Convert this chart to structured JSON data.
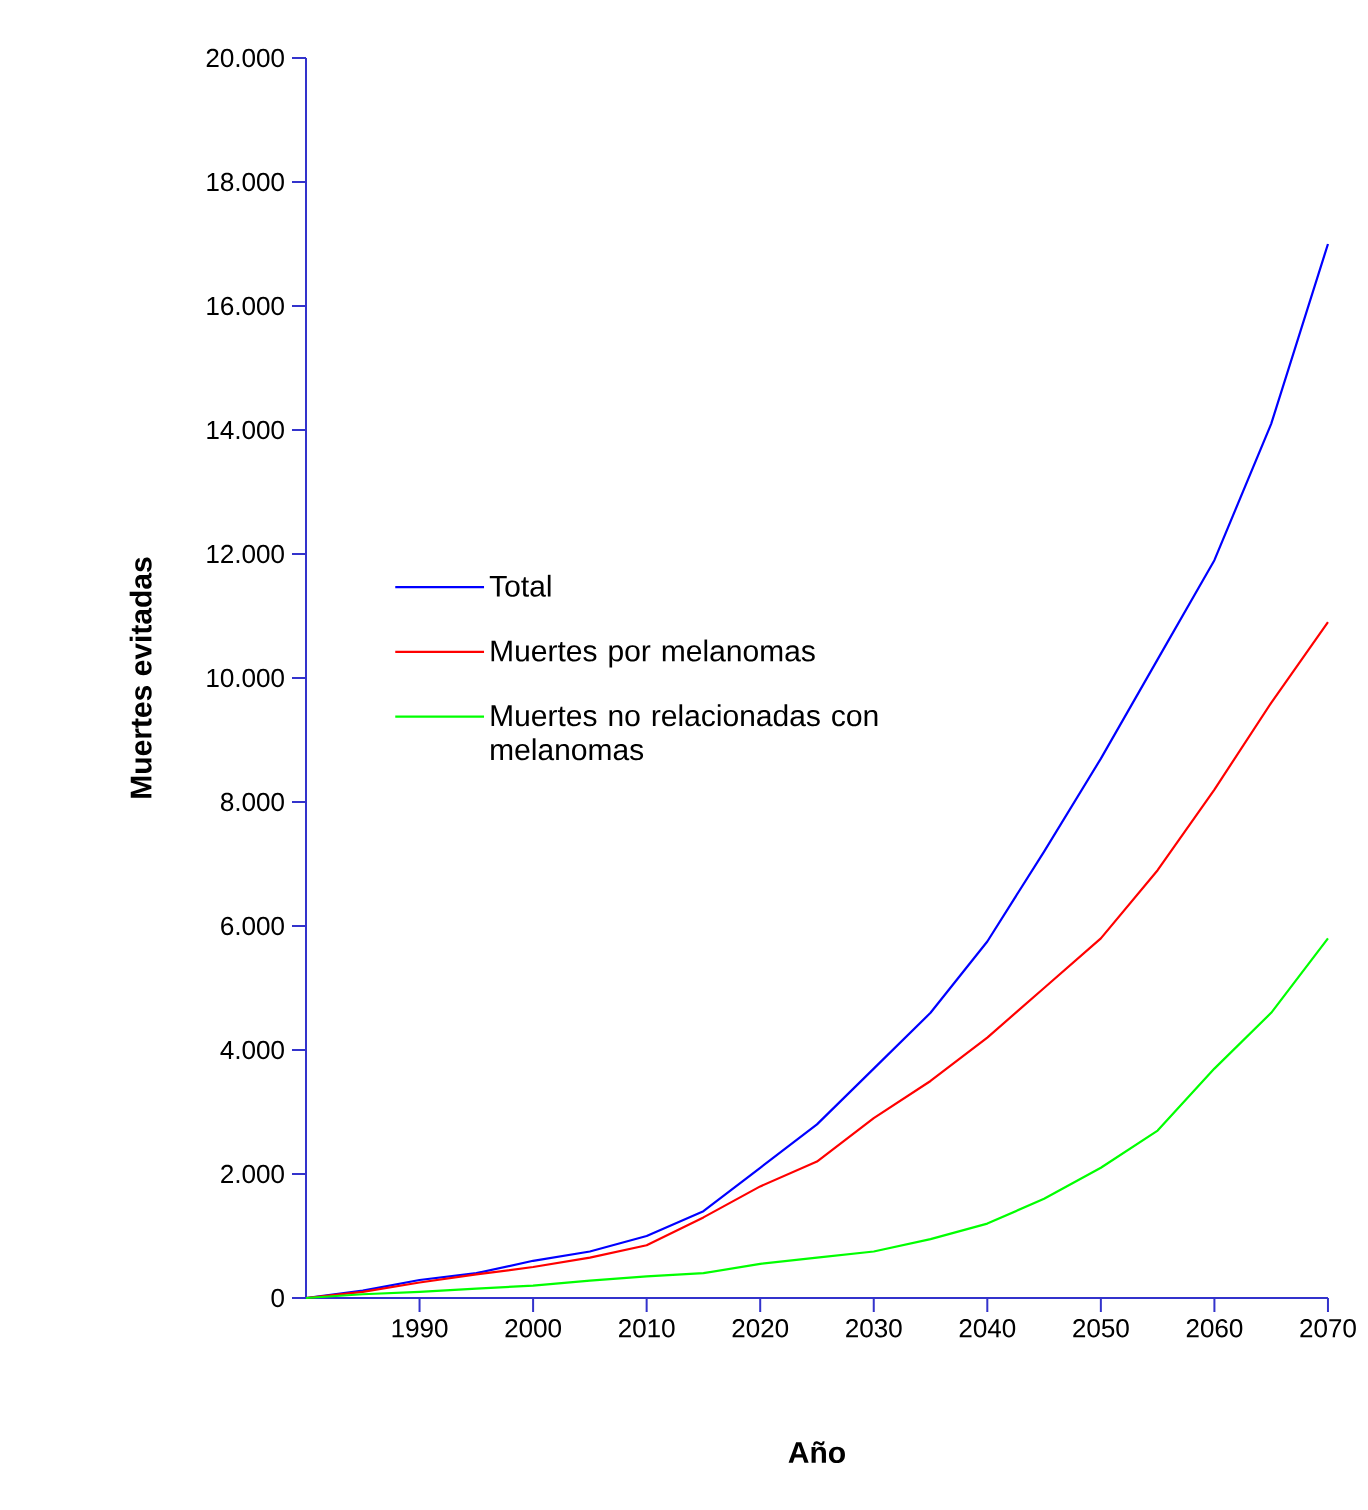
{
  "chart_data": {
    "type": "line",
    "xlabel": "Año",
    "ylabel": "Muertes evitadas",
    "x": [
      1980,
      1985,
      1990,
      1995,
      2000,
      2005,
      2010,
      2015,
      2020,
      2025,
      2030,
      2035,
      2040,
      2045,
      2050,
      2055,
      2060,
      2065,
      2070
    ],
    "series": [
      {
        "name": "Total",
        "color": "#0000ff",
        "values": [
          0,
          120,
          290,
          400,
          600,
          750,
          1000,
          1400,
          2100,
          2800,
          3700,
          4600,
          5750,
          7200,
          8700,
          10300,
          11900,
          14100,
          17000
        ]
      },
      {
        "name": "Muertes por melanomas",
        "color": "#ff0000",
        "values": [
          0,
          100,
          250,
          380,
          500,
          650,
          850,
          1300,
          1800,
          2200,
          2900,
          3500,
          4200,
          5000,
          5800,
          6900,
          8200,
          9600,
          10900
        ]
      },
      {
        "name": "Muertes no relacionadas con melanomas",
        "color": "#00ff00",
        "values": [
          0,
          60,
          100,
          150,
          200,
          280,
          350,
          400,
          550,
          650,
          750,
          950,
          1200,
          1600,
          2100,
          2700,
          3700,
          4600,
          5800
        ]
      }
    ],
    "xlim": [
      1980,
      2070
    ],
    "ylim": [
      0,
      20000
    ],
    "xticks": [
      1990,
      2000,
      2010,
      2020,
      2030,
      2040,
      2050,
      2060,
      2070
    ],
    "yticks": [
      0,
      {
        "value": 2000,
        "label": "2.000"
      },
      {
        "value": 4000,
        "label": "4.000"
      },
      {
        "value": 6000,
        "label": "6.000"
      },
      {
        "value": 8000,
        "label": "8.000"
      },
      {
        "value": 10000,
        "label": "10.000"
      },
      {
        "value": 12000,
        "label": "12.000"
      },
      {
        "value": 14000,
        "label": "14.000"
      },
      {
        "value": 16000,
        "label": "16.000"
      },
      {
        "value": 18000,
        "label": "18.000"
      },
      {
        "value": 20000,
        "label": "20.000"
      }
    ],
    "legend": "left",
    "grid": false
  }
}
